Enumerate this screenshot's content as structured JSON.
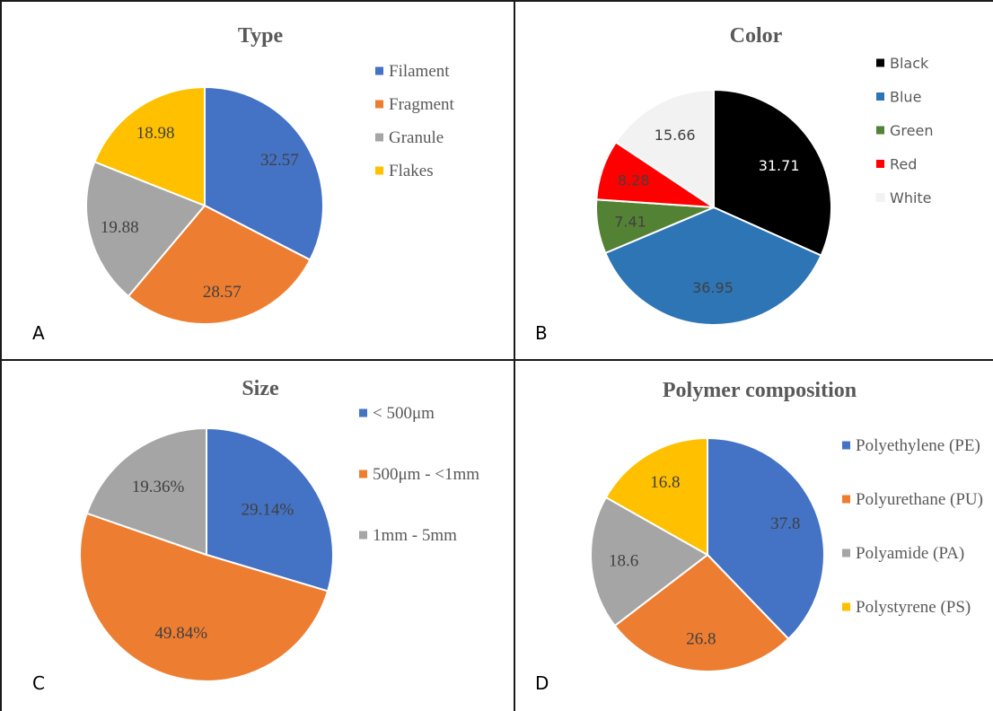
{
  "chart_data": [
    {
      "type": "pie",
      "panel_letter": "A",
      "title": "Type",
      "categories": [
        "Filament",
        "Fragment",
        "Granule",
        "Flakes"
      ],
      "values": [
        32.57,
        28.57,
        19.88,
        18.98
      ],
      "labels": [
        "32.57",
        "28.57",
        "19.88",
        "18.98"
      ],
      "colors": [
        "#4472C4",
        "#ED7D31",
        "#A5A5A5",
        "#FFC000"
      ],
      "legend_position": "right"
    },
    {
      "type": "pie",
      "panel_letter": "B",
      "title": "Color",
      "categories": [
        "Black",
        "Blue",
        "Green",
        "Red",
        "White"
      ],
      "values": [
        31.71,
        36.95,
        7.41,
        8.28,
        15.66
      ],
      "labels": [
        "31.71",
        "36.95",
        "7.41",
        "8.28",
        "15.66"
      ],
      "colors": [
        "#000000",
        "#2E75B6",
        "#548235",
        "#FF0000",
        "#F2F2F2"
      ],
      "label_colors": [
        "#ffffff",
        "#404040",
        "#404040",
        "#404040",
        "#404040"
      ],
      "legend_position": "right"
    },
    {
      "type": "pie",
      "panel_letter": "C",
      "title": "Size",
      "categories": [
        "< 500μm",
        "500μm - <1mm",
        "1mm - 5mm"
      ],
      "values": [
        29.14,
        49.84,
        19.36
      ],
      "labels": [
        "29.14%",
        "49.84%",
        "19.36%"
      ],
      "colors": [
        "#4472C4",
        "#ED7D31",
        "#A5A5A5"
      ],
      "legend_position": "right"
    },
    {
      "type": "pie",
      "panel_letter": "D",
      "title": "Polymer composition",
      "categories": [
        "Polyethylene (PE)",
        "Polyurethane (PU)",
        "Polyamide (PA)",
        "Polystyrene (PS)"
      ],
      "values": [
        37.8,
        26.8,
        18.6,
        16.8
      ],
      "labels": [
        "37.8",
        "26.8",
        "18.6",
        "16.8"
      ],
      "colors": [
        "#4472C4",
        "#ED7D31",
        "#A5A5A5",
        "#FFC000"
      ],
      "legend_position": "right"
    }
  ]
}
